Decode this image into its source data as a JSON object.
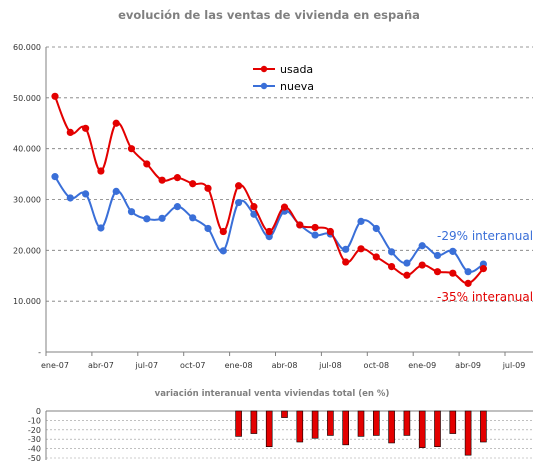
{
  "chart_data": [
    {
      "type": "line",
      "title": "evolución de las ventas de vivienda en españa",
      "ylim": [
        0,
        60000
      ],
      "y_ticks": [
        "-",
        "10.000",
        "20.000",
        "30.000",
        "40.000",
        "50.000",
        "60.000"
      ],
      "x_ticks": [
        "ene-07",
        "abr-07",
        "jul-07",
        "oct-07",
        "ene-08",
        "abr-08",
        "jul-08",
        "oct-08",
        "ene-09",
        "abr-09",
        "jul-09"
      ],
      "grid": true,
      "legend_position": "top-center",
      "colors": {
        "usada": "#e30000",
        "nueva": "#3a6fd8"
      },
      "series": [
        {
          "name": "usada",
          "values": [
            50300,
            43200,
            44000,
            35600,
            45000,
            40000,
            37000,
            33800,
            34300,
            33100,
            32200,
            23700,
            32700,
            28600,
            23700,
            28500,
            25000,
            24500,
            23700,
            17700,
            20300,
            18700,
            16800,
            15100,
            17100,
            15800,
            15500,
            13500,
            16400
          ]
        },
        {
          "name": "nueva",
          "values": [
            34500,
            30300,
            31100,
            24400,
            31600,
            27600,
            26200,
            26300,
            28600,
            26400,
            24300,
            19900,
            29400,
            27100,
            22700,
            27700,
            25000,
            23000,
            23200,
            20200,
            25700,
            24300,
            19700,
            17500,
            20900,
            19000,
            19800,
            15800,
            17300
          ]
        }
      ],
      "annotations": [
        {
          "text": "-29% interanual",
          "series": "nueva"
        },
        {
          "text": "-35% interanual",
          "series": "usada"
        }
      ]
    },
    {
      "type": "bar",
      "title": "variación interanual venta viviendas total (en %)",
      "ylim": [
        -50,
        0
      ],
      "y_ticks": [
        "0",
        "-10",
        "-20",
        "-30",
        "-40",
        "-50"
      ],
      "color": "#e30000",
      "values": [
        -27,
        -24,
        -38,
        -7,
        -33,
        -29,
        -26,
        -36,
        -27,
        -26,
        -34,
        -26,
        -39,
        -38,
        -24,
        -47,
        -33
      ],
      "start_month_index": 12
    }
  ]
}
